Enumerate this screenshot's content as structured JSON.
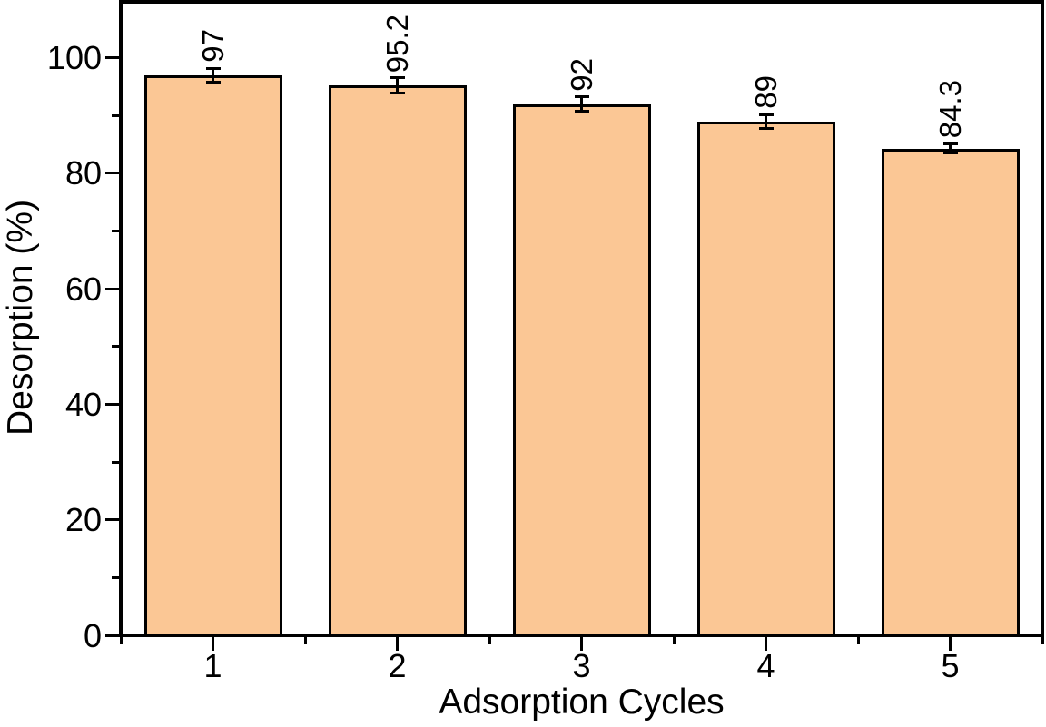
{
  "figure": {
    "background": "#ffffff",
    "text_color": "#000000"
  },
  "chart_data": {
    "type": "bar",
    "title": null,
    "xlabel": "Adsorption Cycles",
    "ylabel": "Desorption (%)",
    "categories": [
      "1",
      "2",
      "3",
      "4",
      "5"
    ],
    "values": [
      97,
      95.2,
      92,
      89,
      84.3
    ],
    "bar_labels": [
      "97",
      "95.2",
      "92",
      "89",
      "84.3"
    ],
    "bar_label_rotation_deg": 90,
    "error_bars": [
      1.2,
      1.3,
      1.2,
      1.2,
      0.8
    ],
    "ylim": [
      0,
      110
    ],
    "yticks_major": [
      0,
      20,
      40,
      60,
      80,
      100
    ],
    "yticks_minor": [
      10,
      30,
      50,
      70,
      90
    ],
    "x_minor_ticks": "category-boundaries",
    "bar_width_fraction": 0.75,
    "bar_fill": "#fbc795",
    "bar_edge": "#000000",
    "axis_color": "#000000",
    "grid": false,
    "legend": "none",
    "frame": "full-box-outward-ticks"
  }
}
